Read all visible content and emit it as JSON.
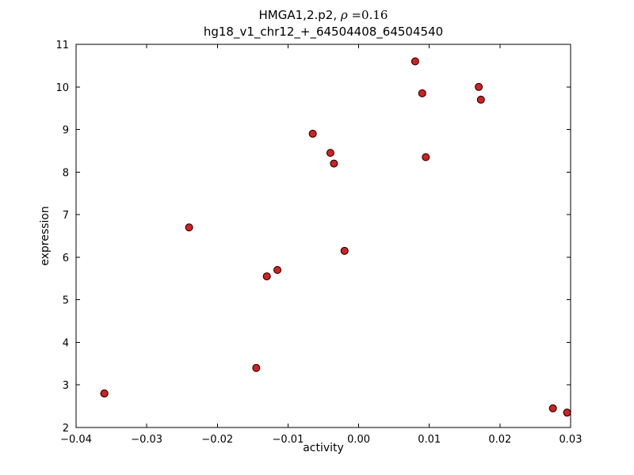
{
  "chart_data": {
    "type": "scatter",
    "title_prefix": "HMGA1,2.p2, ",
    "title_rho": "ρ",
    "title_rho_value": " =0.16",
    "subtitle": "hg18_v1_chr12_+_64504408_64504540",
    "xlabel": "activity",
    "ylabel": "expression",
    "xlim": [
      -0.04,
      0.03
    ],
    "ylim": [
      2,
      11
    ],
    "xtick_values": [
      -0.04,
      -0.03,
      -0.02,
      -0.01,
      0.0,
      0.01,
      0.02,
      0.03
    ],
    "xtick_labels": [
      "−0.04",
      "−0.03",
      "−0.02",
      "−0.01",
      "0.00",
      "0.01",
      "0.02",
      "0.03"
    ],
    "ytick_values": [
      2,
      3,
      4,
      5,
      6,
      7,
      8,
      9,
      10,
      11
    ],
    "ytick_labels": [
      "2",
      "3",
      "4",
      "5",
      "6",
      "7",
      "8",
      "9",
      "10",
      "11"
    ],
    "points": [
      [
        -0.036,
        2.8
      ],
      [
        -0.024,
        6.7
      ],
      [
        -0.0145,
        3.4
      ],
      [
        -0.013,
        5.55
      ],
      [
        -0.0115,
        5.7
      ],
      [
        -0.0065,
        8.9
      ],
      [
        -0.004,
        8.45
      ],
      [
        -0.0035,
        8.2
      ],
      [
        -0.002,
        6.15
      ],
      [
        0.008,
        10.6
      ],
      [
        0.009,
        9.85
      ],
      [
        0.0095,
        8.35
      ],
      [
        0.017,
        10.0
      ],
      [
        0.0173,
        9.7
      ],
      [
        0.0275,
        2.45
      ],
      [
        0.0295,
        2.35
      ],
      [
        -0.036,
        2.8
      ]
    ],
    "legend": null,
    "grid": false,
    "marker_fill": "#dd1c1c",
    "marker_edge": "#000000",
    "marker_radius": 4.5,
    "axis_color": "#000000",
    "background": "#ffffff"
  }
}
